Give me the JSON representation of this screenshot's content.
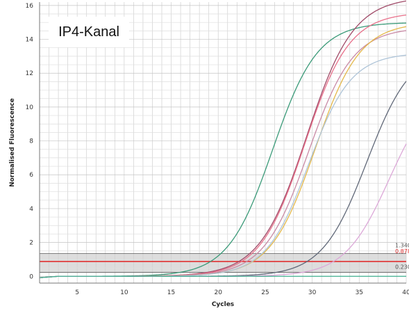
{
  "channel_label": "IP4-Kanal",
  "chart_data": {
    "type": "line",
    "xlabel": "Cycles",
    "ylabel": "Normalised Fluorescence",
    "xlim": [
      1,
      40
    ],
    "ylim": [
      -0.4,
      16.2
    ],
    "x_ticks": [
      5,
      10,
      15,
      20,
      25,
      30,
      35,
      40
    ],
    "y_ticks": [
      0,
      2,
      4,
      6,
      8,
      10,
      12,
      14,
      16
    ],
    "grid": true,
    "threshold_band": {
      "low": 0.23,
      "high": 1.34,
      "color": "#d9d9d9"
    },
    "thresholds": [
      {
        "label": "1.340",
        "value": 1.34,
        "color": "#555555"
      },
      {
        "label": "0.878",
        "value": 0.878,
        "color": "#e03030"
      },
      {
        "label": "0.230",
        "value": 0.23,
        "color": "#555555"
      }
    ],
    "series": [
      {
        "color": "#3a9a78",
        "baseline": 0.0,
        "plateau": 15.0,
        "midpoint": 25.8,
        "slope": 0.42
      },
      {
        "color": "#a04a68",
        "baseline": 0.0,
        "plateau": 16.5,
        "midpoint": 29.4,
        "slope": 0.4
      },
      {
        "color": "#e8708a",
        "baseline": 0.0,
        "plateau": 15.6,
        "midpoint": 29.2,
        "slope": 0.42
      },
      {
        "color": "#c98aa6",
        "baseline": 0.0,
        "plateau": 14.7,
        "midpoint": 29.6,
        "slope": 0.42
      },
      {
        "color": "#e4b84a",
        "baseline": 0.0,
        "plateau": 15.0,
        "midpoint": 30.3,
        "slope": 0.42
      },
      {
        "color": "#aec4d8",
        "baseline": 0.0,
        "plateau": 13.2,
        "midpoint": 29.6,
        "slope": 0.44
      },
      {
        "color": "#606878",
        "baseline": 0.0,
        "plateau": 13.5,
        "midpoint": 35.8,
        "slope": 0.42
      },
      {
        "color": "#dca8d8",
        "baseline": 0.0,
        "plateau": 11.5,
        "midpoint": 38.2,
        "slope": 0.42
      },
      {
        "color": "#40b090",
        "baseline": 0.0,
        "plateau": 0.0,
        "midpoint": 50,
        "slope": 0.4
      }
    ]
  }
}
